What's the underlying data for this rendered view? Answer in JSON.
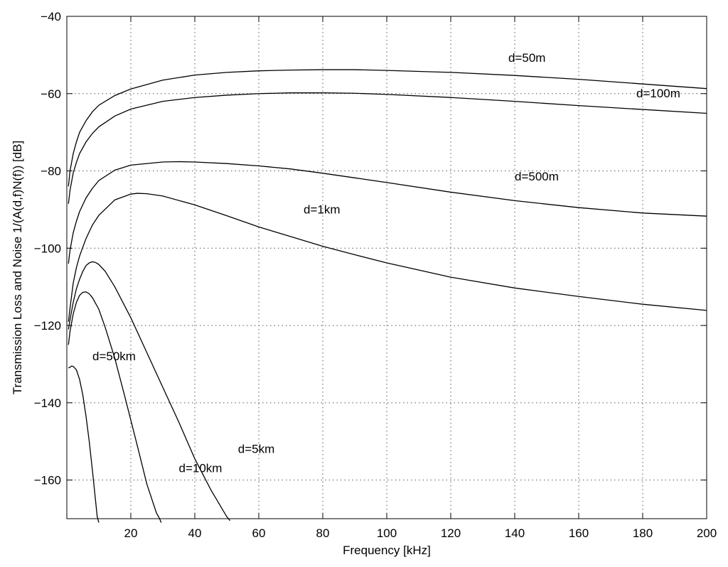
{
  "chart_data": {
    "type": "line",
    "title": "",
    "xlabel": "Frequency [kHz]",
    "ylabel": "Transmission Loss and Noise 1/(A(d,f)N(f)) [dB]",
    "xlim": [
      0,
      200
    ],
    "ylim": [
      -170,
      -40
    ],
    "xticks": [
      20,
      40,
      60,
      80,
      100,
      120,
      140,
      160,
      180,
      200
    ],
    "yticks": [
      -160,
      -140,
      -120,
      -100,
      -80,
      -60,
      -40
    ],
    "xtick_labels": [
      "20",
      "40",
      "60",
      "80",
      "100",
      "120",
      "140",
      "160",
      "180",
      "200"
    ],
    "ytick_labels": [
      "−160",
      "−140",
      "−120",
      "−100",
      "−80",
      "−60",
      "−40"
    ],
    "grid": true,
    "line_color": "#000000",
    "series": [
      {
        "name": "d=50m",
        "x": [
          0.5,
          1,
          2,
          3,
          4,
          6,
          8,
          10,
          15,
          20,
          30,
          40,
          50,
          60,
          70,
          80,
          90,
          100,
          120,
          140,
          160,
          180,
          200
        ],
        "y": [
          -84,
          -80,
          -75.5,
          -72.5,
          -70,
          -67,
          -64.7,
          -63,
          -60.5,
          -58.8,
          -56.5,
          -55.2,
          -54.5,
          -54.1,
          -53.9,
          -53.8,
          -53.8,
          -54,
          -54.5,
          -55.3,
          -56.3,
          -57.5,
          -58.7
        ],
        "label_x": 138,
        "label_y": -51.8
      },
      {
        "name": "d=100m",
        "x": [
          0.5,
          1,
          2,
          3,
          4,
          6,
          8,
          10,
          15,
          20,
          30,
          40,
          50,
          60,
          70,
          80,
          90,
          100,
          120,
          140,
          160,
          180,
          200
        ],
        "y": [
          -88.5,
          -85,
          -80.5,
          -77.8,
          -75.5,
          -72.5,
          -70.3,
          -68.6,
          -65.8,
          -64,
          -62,
          -61,
          -60.4,
          -60,
          -59.8,
          -59.8,
          -59.9,
          -60.2,
          -61,
          -62,
          -63.1,
          -64.1,
          -65.1
        ],
        "label_x": 178,
        "label_y": -61
      },
      {
        "name": "d=500m",
        "x": [
          0.5,
          1,
          2,
          3,
          4,
          6,
          8,
          10,
          15,
          20,
          30,
          35,
          40,
          50,
          60,
          70,
          80,
          90,
          100,
          120,
          140,
          160,
          180,
          200
        ],
        "y": [
          -104,
          -100.5,
          -96,
          -93,
          -90.5,
          -87,
          -84.5,
          -82.5,
          -79.8,
          -78.5,
          -77.7,
          -77.6,
          -77.7,
          -78.1,
          -78.7,
          -79.5,
          -80.6,
          -81.8,
          -83,
          -85.5,
          -87.7,
          -89.5,
          -90.9,
          -91.7
        ],
        "label_x": 140,
        "label_y": -82.5
      },
      {
        "name": "d=1km",
        "x": [
          0.5,
          1,
          2,
          3,
          4,
          6,
          8,
          10,
          15,
          20,
          22,
          25,
          30,
          40,
          50,
          60,
          70,
          80,
          90,
          100,
          120,
          140,
          160,
          180,
          200
        ],
        "y": [
          -119,
          -115.5,
          -109,
          -105,
          -102,
          -97.5,
          -94,
          -91.5,
          -87.5,
          -86,
          -85.8,
          -85.9,
          -86.5,
          -88.8,
          -91.6,
          -94.5,
          -97,
          -99.5,
          -101.7,
          -103.8,
          -107.5,
          -110.3,
          -112.5,
          -114.5,
          -116.1
        ],
        "label_x": 74,
        "label_y": -91
      },
      {
        "name": "d=5km",
        "x": [
          0.5,
          1,
          2,
          3,
          4,
          5,
          6,
          7,
          8,
          9,
          10,
          12,
          15,
          20,
          25,
          30,
          35,
          40,
          45,
          50,
          51
        ],
        "y": [
          -121,
          -118.5,
          -114,
          -110.5,
          -108,
          -106,
          -104.5,
          -103.8,
          -103.5,
          -103.7,
          -104.2,
          -106,
          -110,
          -118,
          -127,
          -136,
          -145,
          -154.5,
          -162.5,
          -169.5,
          -170.5
        ],
        "label_x": 53.5,
        "label_y": -153
      },
      {
        "name": "d=10km",
        "x": [
          0.5,
          1,
          2,
          3,
          4,
          5,
          6,
          7,
          8,
          10,
          12,
          15,
          18,
          20,
          22,
          25,
          28,
          29,
          29.5
        ],
        "y": [
          -125,
          -121.5,
          -117,
          -114,
          -112.2,
          -111.4,
          -111.3,
          -111.8,
          -112.8,
          -115.8,
          -120.5,
          -128.5,
          -138,
          -144.5,
          -151,
          -161,
          -168.5,
          -170,
          -171
        ],
        "label_x": 35,
        "label_y": -158
      },
      {
        "name": "d=50km",
        "x": [
          0.5,
          1,
          1.5,
          2,
          3,
          4,
          5,
          6,
          7,
          8,
          9,
          9.5,
          10
        ],
        "y": [
          -131,
          -130.8,
          -130.5,
          -130.6,
          -131.5,
          -134,
          -138,
          -143.5,
          -150,
          -157.5,
          -165.5,
          -169.5,
          -171
        ],
        "label_x": 8,
        "label_y": -129
      }
    ]
  }
}
